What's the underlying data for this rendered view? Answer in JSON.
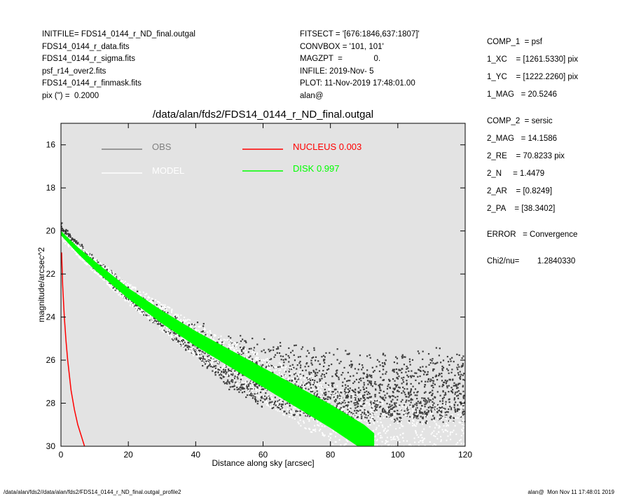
{
  "header_left": [
    "INITFILE= FDS14_0144_r_ND_final.outgal",
    "FDS14_0144_r_data.fits",
    "FDS14_0144_r_sigma.fits",
    "psf_r14_over2.fits",
    "FDS14_0144_r_finmask.fits",
    "pix (\") =  0.2000"
  ],
  "header_mid": [
    "FITSECT = '[676:1846,637:1807]'",
    "CONVBOX = '101, 101'",
    "MAGZPT  =              0.",
    "INFILE: 2019-Nov- 5",
    "PLOT: 11-Nov-2019 17:48:01.00",
    "alan@"
  ],
  "header_right": {
    "comp1": [
      "COMP_1  = psf",
      "1_XC    = [1261.5330] pix",
      "1_YC    = [1222.2260] pix",
      "1_MAG   = 20.5246"
    ],
    "comp2": [
      "COMP_2  = sersic",
      "2_MAG   = 14.1586",
      "2_RE    = 70.8233 pix",
      "2_N     = 1.4479",
      "2_AR    = [0.8249]",
      "2_PA    = [38.3402]"
    ],
    "error": "ERROR   = Convergence",
    "chi2": "Chi2/nu=        1.2840330"
  },
  "chart_data": {
    "type": "scatter",
    "title": "/data/alan/fds2/FDS14_0144_r_ND_final.outgal",
    "xlabel": "Distance along sky [arcsec]",
    "ylabel": "magnitude/arcsec^2",
    "xlim": [
      0,
      120
    ],
    "ylim": [
      30,
      15
    ],
    "y_inverted": true,
    "xticks": [
      0,
      20,
      40,
      60,
      80,
      100,
      120
    ],
    "yticks": [
      16,
      18,
      20,
      22,
      24,
      26,
      28,
      30
    ],
    "background": "#e3e3e3",
    "grid": false,
    "legend": [
      {
        "label": "OBS",
        "color": "#808080"
      },
      {
        "label": "MODEL",
        "color": "#ffffff"
      },
      {
        "label": "NUCLEUS  0.003",
        "color": "#ff0000"
      },
      {
        "label": "DISK  0.997",
        "color": "#00ff00"
      }
    ],
    "series": [
      {
        "name": "OBS",
        "color": "#404040",
        "kind": "points",
        "profile_x": [
          0,
          5,
          10,
          20,
          30,
          40,
          50,
          60,
          70,
          80,
          90,
          100,
          110,
          120
        ],
        "profile_y": [
          19.8,
          20.6,
          21.4,
          22.7,
          23.7,
          24.4,
          24.9,
          25.2,
          25.4,
          25.5,
          25.6,
          25.6,
          25.6,
          25.6
        ],
        "scatter_spread": [
          0.3,
          0.3,
          0.4,
          0.6,
          0.9,
          1.5,
          2.5,
          3.0,
          3.2,
          3.3,
          3.3,
          3.3,
          3.3,
          3.3
        ]
      },
      {
        "name": "MODEL",
        "color": "#ffffff",
        "kind": "points",
        "profile_x": [
          0,
          10,
          20,
          40,
          60,
          80,
          100,
          120
        ],
        "profile_y": [
          20.2,
          21.6,
          22.9,
          25.1,
          26.9,
          28.5,
          29.8,
          30.0
        ]
      },
      {
        "name": "NUCLEUS",
        "color": "#ff0000",
        "kind": "line",
        "x": [
          0.2,
          0.5,
          1,
          1.5,
          2,
          3,
          4,
          5,
          6,
          7
        ],
        "y": [
          21.0,
          22.5,
          24.0,
          25.1,
          26.0,
          27.4,
          28.3,
          29.0,
          29.5,
          30.0
        ]
      },
      {
        "name": "DISK",
        "color": "#00ff00",
        "kind": "band",
        "x": [
          0,
          5,
          10,
          20,
          30,
          40,
          50,
          60,
          70,
          80,
          90,
          93
        ],
        "y": [
          20.1,
          20.9,
          21.6,
          22.9,
          24.0,
          25.0,
          25.9,
          26.8,
          27.7,
          28.6,
          29.6,
          30.0
        ],
        "halfwidth": [
          0.1,
          0.15,
          0.2,
          0.25,
          0.3,
          0.35,
          0.4,
          0.45,
          0.5,
          0.55,
          0.6,
          0.6
        ]
      }
    ]
  },
  "footer": {
    "left": "/data/alan/fds2//data/alan/fds2/FDS14_0144_r_ND_final.outgal_profile2",
    "right": "alan@  Mon Nov 11 17:48:01 2019"
  }
}
